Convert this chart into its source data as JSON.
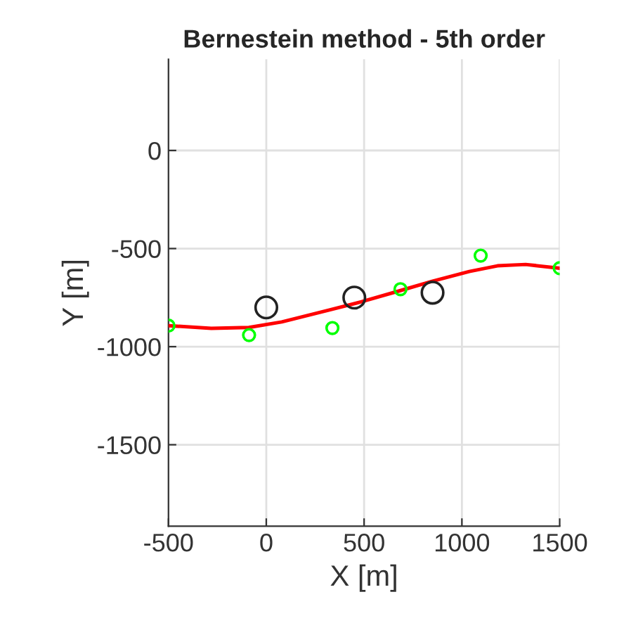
{
  "chart_data": {
    "type": "line",
    "title": "Bernestein method - 5th order",
    "xlabel": "X [m]",
    "ylabel": "Y [m]",
    "xlim": [
      -500,
      1500
    ],
    "ylim": [
      -1915,
      465
    ],
    "xticks": [
      -500,
      0,
      500,
      1000,
      1500
    ],
    "yticks": [
      -1500,
      -1000,
      -500,
      0
    ],
    "grid": true,
    "legend": false,
    "series": [
      {
        "color": "#ff0000",
        "line_style": "solid",
        "marker": "none",
        "x": [
          -500,
          -281,
          -89,
          79,
          319,
          487,
          686,
          847,
          1038,
          1182,
          1326,
          1500
        ],
        "values": [
          -893,
          -907,
          -902,
          -874,
          -814,
          -771,
          -714,
          -667,
          -617,
          -588,
          -581,
          -600
        ]
      },
      {
        "type": "scatter",
        "color": "#00ff00",
        "marker": "circle",
        "x": [
          -500,
          -88,
          338,
          686,
          1096,
          1500
        ],
        "values": [
          -893,
          -941,
          -905,
          -707,
          -536,
          -600
        ]
      },
      {
        "type": "scatter",
        "color": "#222222",
        "marker": "circle",
        "x": [
          0,
          450,
          850
        ],
        "values": [
          -800,
          -750,
          -725
        ]
      }
    ]
  }
}
